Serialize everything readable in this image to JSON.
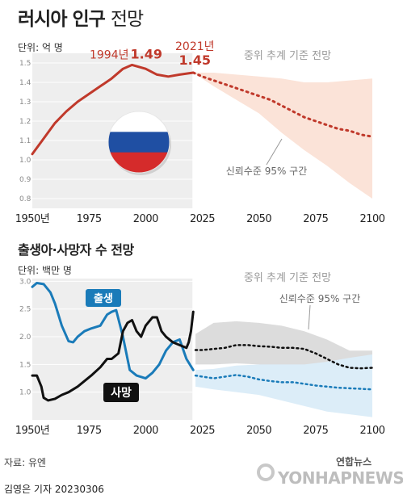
{
  "title_bold": "러시아 인구",
  "title_light": "전망",
  "source": "자료: 유엔",
  "byline": "김영은 기자  20230306",
  "logo_kr": "연합뉴스",
  "logo_en": "YONHAPNEWS",
  "colors": {
    "population": "#c0392b",
    "confidence_pop": "#fbe3d8",
    "births": "#1a7bb9",
    "deaths": "#111111",
    "confidence_gray": "#dcdcdc",
    "confidence_blue": "#dcedf8",
    "history_bg": "#eeeeee"
  },
  "chart_data": [
    {
      "type": "line",
      "unit_label": "단위: 억 명",
      "projection_label": "중위 추계 기준 전망",
      "ci_label": "신뢰수준 95% 구간",
      "xlim": [
        1950,
        2100
      ],
      "ylim": [
        0.75,
        1.55
      ],
      "x_ticks": [
        1950,
        1975,
        2000,
        2025,
        2050,
        2075,
        2100
      ],
      "x_tick_labels": [
        "1950년",
        "1975",
        "2000",
        "2025",
        "2050",
        "2075",
        "2100"
      ],
      "y_ticks": [
        0.8,
        0.9,
        1.0,
        1.1,
        1.2,
        1.3,
        1.4,
        1.5
      ],
      "y_tick_labels": [
        "0.8",
        "0.9",
        "1.0",
        "1.1",
        "1.2",
        "1.3",
        "1.4",
        "1.5"
      ],
      "annotations": [
        {
          "year_label": "1994년",
          "value_label": "1.49",
          "x": 1994,
          "y": 1.49
        },
        {
          "year_label": "2021년",
          "value_label": "1.45",
          "x": 2021,
          "y": 1.45
        }
      ],
      "series": [
        {
          "role": "historical",
          "x": [
            1950,
            1955,
            1960,
            1965,
            1970,
            1975,
            1980,
            1985,
            1990,
            1994,
            2000,
            2005,
            2010,
            2015,
            2021
          ],
          "y": [
            1.03,
            1.11,
            1.19,
            1.25,
            1.3,
            1.34,
            1.38,
            1.42,
            1.47,
            1.49,
            1.47,
            1.44,
            1.43,
            1.44,
            1.45
          ]
        },
        {
          "role": "projection",
          "x": [
            2021,
            2025,
            2030,
            2035,
            2040,
            2045,
            2050,
            2055,
            2060,
            2065,
            2070,
            2075,
            2080,
            2085,
            2090,
            2095,
            2100
          ],
          "y": [
            1.45,
            1.43,
            1.41,
            1.39,
            1.37,
            1.35,
            1.33,
            1.31,
            1.28,
            1.25,
            1.22,
            1.2,
            1.18,
            1.16,
            1.15,
            1.13,
            1.12
          ]
        }
      ],
      "ci": {
        "x": [
          2021,
          2030,
          2040,
          2050,
          2060,
          2070,
          2080,
          2090,
          2100
        ],
        "upper": [
          1.45,
          1.45,
          1.44,
          1.43,
          1.42,
          1.4,
          1.4,
          1.41,
          1.42
        ],
        "lower": [
          1.45,
          1.38,
          1.31,
          1.24,
          1.14,
          1.05,
          0.97,
          0.88,
          0.8
        ]
      }
    },
    {
      "type": "line",
      "title": "출생아·사망자 수 전망",
      "unit_label": "단위: 백만 명",
      "projection_label": "중위 추계 기준 전망",
      "ci_label": "신뢰수준 95% 구간",
      "xlim": [
        1950,
        2100
      ],
      "ylim": [
        0.5,
        3.05
      ],
      "x_ticks": [
        1950,
        1975,
        2000,
        2025,
        2050,
        2075,
        2100
      ],
      "x_tick_labels": [
        "1950년",
        "1975",
        "2000",
        "2025",
        "2050",
        "2075",
        "2100"
      ],
      "y_ticks": [
        1.0,
        1.5,
        2.0,
        2.5,
        3.0
      ],
      "y_tick_labels": [
        "1.0",
        "1.5",
        "2.0",
        "2.5",
        "3.0"
      ],
      "series": [
        {
          "name": "출생",
          "role": "historical",
          "x": [
            1950,
            1952,
            1955,
            1958,
            1960,
            1963,
            1966,
            1968,
            1970,
            1973,
            1976,
            1980,
            1983,
            1985,
            1987,
            1990,
            1993,
            1996,
            2000,
            2003,
            2006,
            2009,
            2012,
            2015,
            2018,
            2021
          ],
          "y": [
            2.9,
            2.97,
            2.95,
            2.8,
            2.6,
            2.2,
            1.92,
            1.9,
            2.0,
            2.1,
            2.15,
            2.2,
            2.4,
            2.45,
            2.48,
            2.0,
            1.4,
            1.3,
            1.25,
            1.35,
            1.5,
            1.75,
            1.9,
            1.95,
            1.6,
            1.4
          ]
        },
        {
          "name": "사망",
          "role": "historical",
          "x": [
            1950,
            1952,
            1954,
            1955,
            1957,
            1960,
            1963,
            1966,
            1970,
            1973,
            1976,
            1980,
            1983,
            1985,
            1988,
            1990,
            1992,
            1994,
            1996,
            1998,
            2000,
            2003,
            2005,
            2007,
            2009,
            2012,
            2015,
            2018,
            2019,
            2020,
            2021
          ],
          "y": [
            1.3,
            1.3,
            1.1,
            0.9,
            0.85,
            0.88,
            0.95,
            1.0,
            1.1,
            1.2,
            1.3,
            1.45,
            1.6,
            1.6,
            1.7,
            2.1,
            2.25,
            2.3,
            2.1,
            2.0,
            2.2,
            2.35,
            2.35,
            2.1,
            2.0,
            1.9,
            1.85,
            1.8,
            1.9,
            2.1,
            2.45
          ]
        },
        {
          "name": "출생",
          "role": "projection",
          "x": [
            2022,
            2025,
            2030,
            2035,
            2040,
            2045,
            2050,
            2055,
            2060,
            2065,
            2070,
            2075,
            2080,
            2085,
            2090,
            2095,
            2100
          ],
          "y": [
            1.3,
            1.28,
            1.25,
            1.28,
            1.31,
            1.28,
            1.23,
            1.2,
            1.18,
            1.18,
            1.15,
            1.12,
            1.1,
            1.08,
            1.07,
            1.06,
            1.05
          ]
        },
        {
          "name": "사망",
          "role": "projection",
          "x": [
            2022,
            2025,
            2030,
            2035,
            2040,
            2045,
            2050,
            2055,
            2060,
            2065,
            2070,
            2075,
            2080,
            2085,
            2090,
            2095,
            2100
          ],
          "y": [
            1.76,
            1.76,
            1.78,
            1.8,
            1.85,
            1.85,
            1.83,
            1.82,
            1.8,
            1.8,
            1.78,
            1.7,
            1.6,
            1.5,
            1.44,
            1.43,
            1.44
          ]
        }
      ],
      "ci_gray": {
        "x": [
          2022,
          2030,
          2040,
          2050,
          2060,
          2070,
          2080,
          2090,
          2100
        ],
        "upper": [
          2.05,
          2.25,
          2.28,
          2.25,
          2.2,
          2.1,
          1.95,
          1.75,
          1.75
        ],
        "lower": [
          1.5,
          1.5,
          1.52,
          1.5,
          1.45,
          1.35,
          1.25,
          1.1,
          1.05
        ]
      },
      "ci_blue": {
        "x": [
          2022,
          2030,
          2040,
          2050,
          2060,
          2070,
          2080,
          2090,
          2100
        ],
        "upper": [
          1.4,
          1.42,
          1.48,
          1.5,
          1.5,
          1.5,
          1.55,
          1.62,
          1.68
        ],
        "lower": [
          1.1,
          1.05,
          1.0,
          0.95,
          0.85,
          0.75,
          0.65,
          0.6,
          0.55
        ]
      }
    }
  ]
}
